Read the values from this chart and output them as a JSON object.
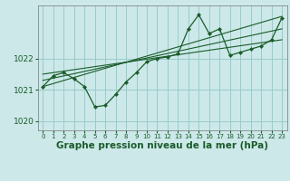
{
  "bg_color": "#cce8e8",
  "grid_color": "#99cccc",
  "line_color": "#1a5c2a",
  "xlabel": "Graphe pression niveau de la mer (hPa)",
  "xlim": [
    -0.5,
    23.5
  ],
  "ylim": [
    1019.7,
    1023.7
  ],
  "yticks": [
    1020,
    1021,
    1022
  ],
  "xticks": [
    0,
    1,
    2,
    3,
    4,
    5,
    6,
    7,
    8,
    9,
    10,
    11,
    12,
    13,
    14,
    15,
    16,
    17,
    18,
    19,
    20,
    21,
    22,
    23
  ],
  "main_line": {
    "x": [
      0,
      1,
      2,
      3,
      4,
      5,
      6,
      7,
      8,
      9,
      10,
      11,
      12,
      13,
      14,
      15,
      16,
      17,
      18,
      19,
      20,
      21,
      22,
      23
    ],
    "y": [
      1021.1,
      1021.45,
      1021.55,
      1021.35,
      1021.1,
      1020.45,
      1020.5,
      1020.85,
      1021.25,
      1021.55,
      1021.9,
      1022.0,
      1022.05,
      1022.15,
      1022.95,
      1023.4,
      1022.8,
      1022.95,
      1022.1,
      1022.2,
      1022.3,
      1022.4,
      1022.6,
      1023.3
    ]
  },
  "trend1": {
    "x": [
      0,
      23
    ],
    "y": [
      1021.1,
      1023.35
    ]
  },
  "trend2": {
    "x": [
      0,
      23
    ],
    "y": [
      1021.3,
      1022.95
    ]
  },
  "trend3": {
    "x": [
      0,
      23
    ],
    "y": [
      1021.5,
      1022.6
    ]
  },
  "xlabel_fontsize": 7.5,
  "tick_fontsize": 6.5,
  "xtick_fontsize": 5.0
}
